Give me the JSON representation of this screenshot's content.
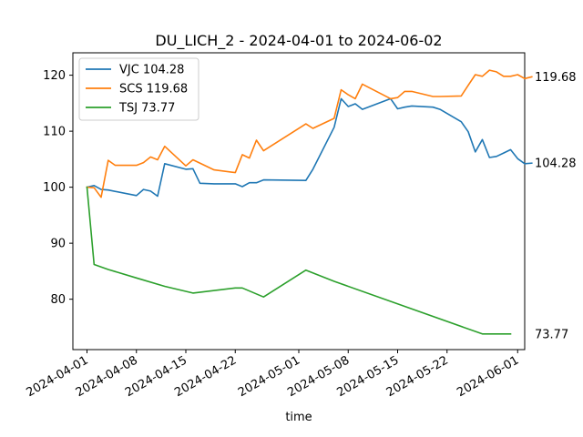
{
  "chart_data": {
    "type": "line",
    "title": "DU_LICH_2 - 2024-04-01 to 2024-06-02",
    "xlabel": "time",
    "ylabel": "",
    "xlim": [
      "2024-03-30",
      "2024-06-02"
    ],
    "ylim": [
      71,
      124
    ],
    "y_ticks": [
      80,
      90,
      100,
      110,
      120
    ],
    "x_ticks": [
      "2024-04-01",
      "2024-04-08",
      "2024-04-15",
      "2024-04-22",
      "2024-05-01",
      "2024-05-08",
      "2024-05-15",
      "2024-05-22",
      "2024-06-01"
    ],
    "grid": false,
    "legend_position": "upper-left",
    "series": [
      {
        "name": "VJC 104.28",
        "color": "#1f77b4",
        "end_label": "104.28",
        "points": [
          [
            "2024-04-01",
            100.0
          ],
          [
            "2024-04-02",
            100.3
          ],
          [
            "2024-04-03",
            99.6
          ],
          [
            "2024-04-04",
            99.5
          ],
          [
            "2024-04-08",
            98.5
          ],
          [
            "2024-04-09",
            99.6
          ],
          [
            "2024-04-10",
            99.3
          ],
          [
            "2024-04-11",
            98.4
          ],
          [
            "2024-04-12",
            104.2
          ],
          [
            "2024-04-15",
            103.2
          ],
          [
            "2024-04-16",
            103.3
          ],
          [
            "2024-04-17",
            100.7
          ],
          [
            "2024-04-19",
            100.6
          ],
          [
            "2024-04-22",
            100.6
          ],
          [
            "2024-04-23",
            100.1
          ],
          [
            "2024-04-24",
            100.8
          ],
          [
            "2024-04-25",
            100.8
          ],
          [
            "2024-04-26",
            101.3
          ],
          [
            "2024-05-02",
            101.2
          ],
          [
            "2024-05-03",
            103.2
          ],
          [
            "2024-05-06",
            110.7
          ],
          [
            "2024-05-07",
            115.8
          ],
          [
            "2024-05-08",
            114.4
          ],
          [
            "2024-05-09",
            114.9
          ],
          [
            "2024-05-10",
            113.9
          ],
          [
            "2024-05-14",
            115.8
          ],
          [
            "2024-05-15",
            114.0
          ],
          [
            "2024-05-16",
            114.3
          ],
          [
            "2024-05-17",
            114.5
          ],
          [
            "2024-05-20",
            114.3
          ],
          [
            "2024-05-21",
            113.9
          ],
          [
            "2024-05-24",
            111.7
          ],
          [
            "2024-05-25",
            109.9
          ],
          [
            "2024-05-26",
            106.3
          ],
          [
            "2024-05-27",
            108.5
          ],
          [
            "2024-05-28",
            105.3
          ],
          [
            "2024-05-29",
            105.5
          ],
          [
            "2024-05-30",
            106.1
          ],
          [
            "2024-05-31",
            106.7
          ],
          [
            "2024-06-01",
            105.1
          ],
          [
            "2024-06-02",
            104.2
          ],
          [
            "2024-06-03",
            104.3
          ]
        ]
      },
      {
        "name": "SCS 119.68",
        "color": "#ff7f0e",
        "end_label": "119.68",
        "points": [
          [
            "2024-04-01",
            100.0
          ],
          [
            "2024-04-02",
            99.9
          ],
          [
            "2024-04-03",
            98.2
          ],
          [
            "2024-04-04",
            104.8
          ],
          [
            "2024-04-05",
            103.9
          ],
          [
            "2024-04-08",
            103.9
          ],
          [
            "2024-04-09",
            104.4
          ],
          [
            "2024-04-10",
            105.4
          ],
          [
            "2024-04-11",
            104.9
          ],
          [
            "2024-04-12",
            107.3
          ],
          [
            "2024-04-15",
            103.8
          ],
          [
            "2024-04-16",
            104.9
          ],
          [
            "2024-04-19",
            103.1
          ],
          [
            "2024-04-22",
            102.6
          ],
          [
            "2024-04-23",
            105.8
          ],
          [
            "2024-04-24",
            105.2
          ],
          [
            "2024-04-25",
            108.4
          ],
          [
            "2024-04-26",
            106.5
          ],
          [
            "2024-05-02",
            111.3
          ],
          [
            "2024-05-03",
            110.5
          ],
          [
            "2024-05-06",
            112.3
          ],
          [
            "2024-05-07",
            117.4
          ],
          [
            "2024-05-08",
            116.5
          ],
          [
            "2024-05-09",
            115.8
          ],
          [
            "2024-05-10",
            118.4
          ],
          [
            "2024-05-14",
            115.8
          ],
          [
            "2024-05-15",
            116.0
          ],
          [
            "2024-05-16",
            117.1
          ],
          [
            "2024-05-17",
            117.1
          ],
          [
            "2024-05-20",
            116.2
          ],
          [
            "2024-05-21",
            116.2
          ],
          [
            "2024-05-24",
            116.3
          ],
          [
            "2024-05-25",
            118.2
          ],
          [
            "2024-05-26",
            120.1
          ],
          [
            "2024-05-27",
            119.8
          ],
          [
            "2024-05-28",
            120.9
          ],
          [
            "2024-05-29",
            120.6
          ],
          [
            "2024-05-30",
            119.8
          ],
          [
            "2024-05-31",
            119.8
          ],
          [
            "2024-06-01",
            120.1
          ],
          [
            "2024-06-02",
            119.4
          ],
          [
            "2024-06-03",
            119.7
          ]
        ]
      },
      {
        "name": "TSJ 73.77",
        "color": "#2ca02c",
        "end_label": "73.77",
        "points": [
          [
            "2024-04-01",
            100.0
          ],
          [
            "2024-04-02",
            86.2
          ],
          [
            "2024-04-04",
            85.3
          ],
          [
            "2024-04-08",
            83.8
          ],
          [
            "2024-04-12",
            82.3
          ],
          [
            "2024-04-16",
            81.1
          ],
          [
            "2024-04-22",
            82.0
          ],
          [
            "2024-04-23",
            82.0
          ],
          [
            "2024-04-26",
            80.4
          ],
          [
            "2024-05-02",
            85.2
          ],
          [
            "2024-05-06",
            83.2
          ],
          [
            "2024-05-27",
            73.8
          ],
          [
            "2024-05-31",
            73.8
          ]
        ]
      }
    ]
  }
}
